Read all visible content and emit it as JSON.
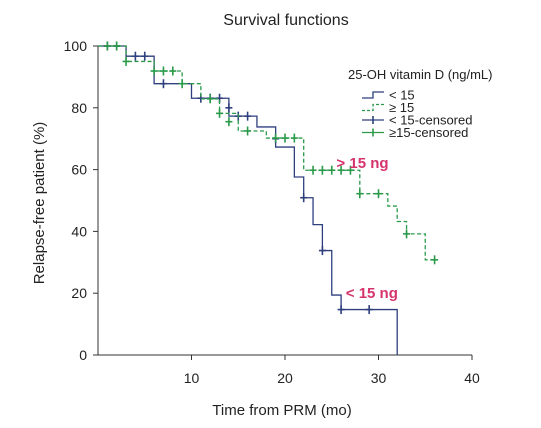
{
  "chart_data": {
    "type": "line",
    "title": "Survival functions",
    "xlabel": "Time from PRM (mo)",
    "ylabel": "Relapse-free patient (%)",
    "xlim": [
      0,
      40
    ],
    "ylim": [
      0,
      100
    ],
    "xticks": [
      10,
      20,
      30,
      40
    ],
    "yticks": [
      0,
      20,
      40,
      60,
      80,
      100
    ],
    "grid": false,
    "legend_title": "25-OH vitamin D (ng/mL)",
    "legend_position": "top-right",
    "series": [
      {
        "name": "< 15",
        "censored_label": "< 15-censored",
        "color": "#2e3f7e",
        "style": "solid",
        "steps": [
          [
            0,
            100
          ],
          [
            3,
            96.7
          ],
          [
            6,
            87.8
          ],
          [
            10,
            83.1
          ],
          [
            14,
            77.3
          ],
          [
            17,
            73.8
          ],
          [
            19,
            67.3
          ],
          [
            21,
            57.6
          ],
          [
            22,
            50.9
          ],
          [
            23,
            42.2
          ],
          [
            24,
            33.8
          ],
          [
            25,
            19.4
          ],
          [
            26,
            14.7
          ],
          [
            32,
            0
          ]
        ],
        "censored": [
          [
            1,
            100
          ],
          [
            2,
            100
          ],
          [
            4,
            96.7
          ],
          [
            5,
            96.7
          ],
          [
            7,
            87.8
          ],
          [
            11,
            83.1
          ],
          [
            12,
            83.1
          ],
          [
            13,
            83.1
          ],
          [
            14,
            80
          ],
          [
            15,
            77.3
          ],
          [
            16,
            77.3
          ],
          [
            19,
            70
          ],
          [
            22,
            50.9
          ],
          [
            24,
            33.8
          ],
          [
            26,
            14.7
          ],
          [
            29,
            14.7
          ]
        ]
      },
      {
        "name": "≥ 15",
        "censored_label": "≥15-censored",
        "color": "#2a9a4a",
        "style": "dashed",
        "steps": [
          [
            0,
            100
          ],
          [
            3,
            95
          ],
          [
            6,
            91.9
          ],
          [
            9,
            87.8
          ],
          [
            11,
            82.9
          ],
          [
            13,
            78.2
          ],
          [
            15,
            72.5
          ],
          [
            18,
            70.2
          ],
          [
            22,
            59.8
          ],
          [
            28,
            52.2
          ],
          [
            31,
            48.2
          ],
          [
            32,
            43.2
          ],
          [
            33,
            39.2
          ],
          [
            35,
            30.8
          ]
        ],
        "censored": [
          [
            1,
            100
          ],
          [
            2,
            100
          ],
          [
            3,
            95
          ],
          [
            6,
            91.9
          ],
          [
            7,
            91.9
          ],
          [
            8,
            91.9
          ],
          [
            9,
            87.8
          ],
          [
            12,
            82.9
          ],
          [
            13,
            78.2
          ],
          [
            14,
            75.5
          ],
          [
            16,
            72.5
          ],
          [
            19,
            70.2
          ],
          [
            20,
            70.2
          ],
          [
            21,
            70.2
          ],
          [
            23,
            59.8
          ],
          [
            24,
            59.8
          ],
          [
            25,
            59.8
          ],
          [
            26,
            59.8
          ],
          [
            27,
            59.8
          ],
          [
            28,
            52.2
          ],
          [
            30,
            52.2
          ],
          [
            33,
            39.2
          ],
          [
            36,
            30.8
          ]
        ]
      }
    ],
    "annotations": [
      {
        "text": "> 15 ng",
        "x": 25.5,
        "y": 60.5,
        "color": "#d6336c"
      },
      {
        "text": "< 15 ng",
        "x": 26.5,
        "y": 18.5,
        "color": "#d6336c"
      }
    ]
  }
}
